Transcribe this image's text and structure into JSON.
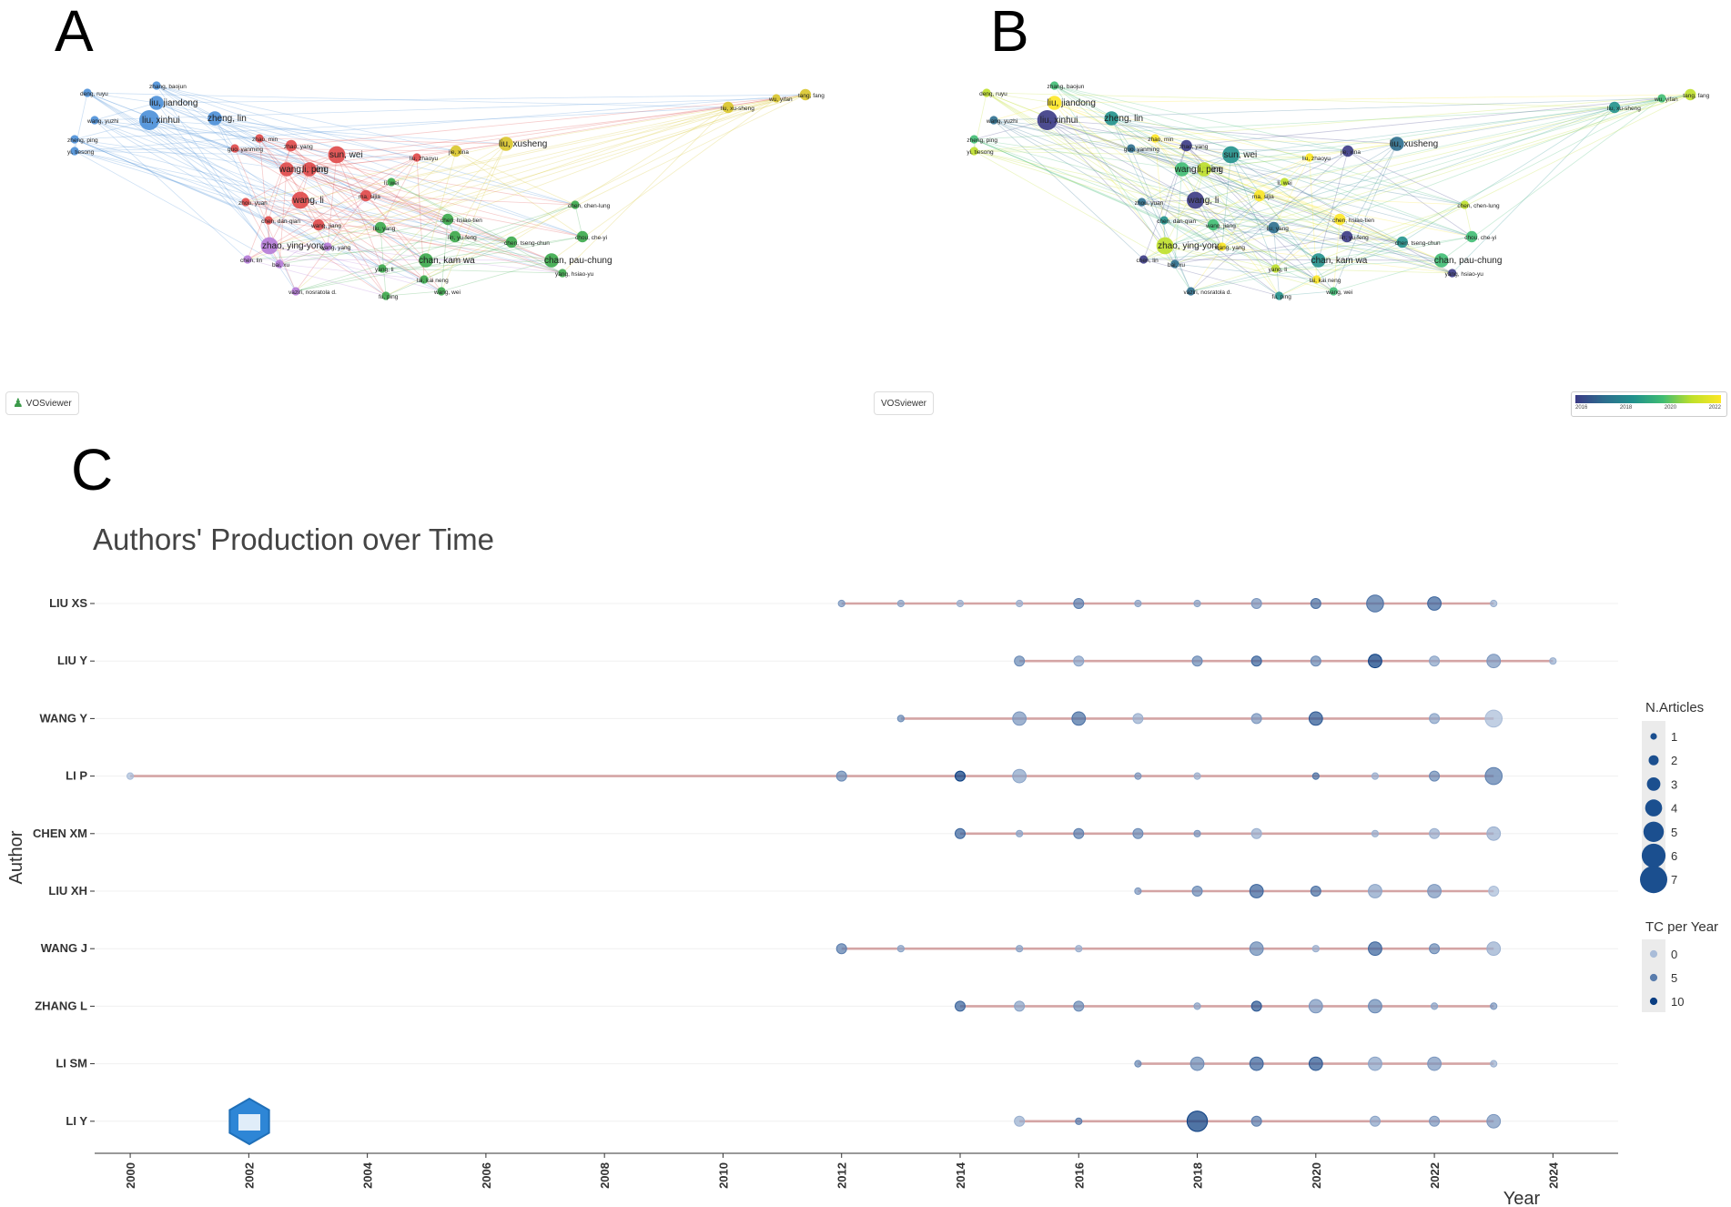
{
  "panels": {
    "a": "A",
    "b": "B",
    "c": "C"
  },
  "vosviewer": {
    "a_label": "VOSviewer",
    "b_label": "VOSviewer"
  },
  "colorbar": {
    "ticks": [
      "2016",
      "2018",
      "2020",
      "2022"
    ]
  },
  "network_labels": [
    "zhang, baojun",
    "deng, ruyu",
    "liu, jiandong",
    "liu, xinhui",
    "wang, yuzhi",
    "zheng, lin",
    "zheng, ping",
    "yi, tiesong",
    "zhao, min",
    "zhao, yang",
    "guo, yanming",
    "sun, wei",
    "wang, chen",
    "li, ping",
    "liu, zhaoyu",
    "jie, xina",
    "liu, xusheng",
    "liu, xu-sheng",
    "wu, yifan",
    "tang, fang",
    "ma, sijia",
    "wang, li",
    "zhou, yuan",
    "chen, dan-qian",
    "wang, jiang",
    "chen, chen-lung",
    "chen, hsiao-tien",
    "lin, yu-feng",
    "liu, yang",
    "chen, tseng-chun",
    "chou, che-yi",
    "zhao, ying-yong",
    "wang, yang",
    "chen, lin",
    "bai, xu",
    "chan, kam wa",
    "chan, pau-chung",
    "yang, li",
    "lai, kai neng",
    "yang, hsiao-yu",
    "vaziri, nosratola d.",
    "fu, ping",
    "wang, wei",
    "li, wei"
  ],
  "chart_data": {
    "type": "scatter",
    "title": "Authors' Production over Time",
    "xlabel": "Year",
    "ylabel": "Author",
    "xlim": [
      1999.4,
      2025.1
    ],
    "xticks": [
      2000,
      2002,
      2004,
      2006,
      2008,
      2010,
      2012,
      2014,
      2016,
      2018,
      2020,
      2022,
      2024
    ],
    "authors": [
      {
        "name": "LIU XS",
        "points": [
          [
            2012,
            1,
            3
          ],
          [
            2013,
            1,
            2
          ],
          [
            2014,
            1,
            1
          ],
          [
            2015,
            1,
            1
          ],
          [
            2016,
            2,
            5
          ],
          [
            2017,
            1,
            2
          ],
          [
            2018,
            1,
            2
          ],
          [
            2019,
            2,
            3
          ],
          [
            2020,
            2,
            6
          ],
          [
            2021,
            4,
            6
          ],
          [
            2022,
            3,
            7
          ],
          [
            2023,
            1,
            1
          ]
        ]
      },
      {
        "name": "LIU Y",
        "points": [
          [
            2015,
            2,
            4
          ],
          [
            2016,
            2,
            2
          ],
          [
            2018,
            2,
            4
          ],
          [
            2019,
            2,
            7
          ],
          [
            2020,
            2,
            4
          ],
          [
            2021,
            3,
            10
          ],
          [
            2022,
            2,
            2
          ],
          [
            2023,
            3,
            3
          ],
          [
            2024,
            1,
            1
          ]
        ]
      },
      {
        "name": "WANG Y",
        "points": [
          [
            2013,
            1,
            4
          ],
          [
            2015,
            3,
            3
          ],
          [
            2016,
            3,
            6
          ],
          [
            2017,
            2,
            1
          ],
          [
            2019,
            2,
            3
          ],
          [
            2020,
            3,
            8
          ],
          [
            2022,
            2,
            2
          ],
          [
            2023,
            4,
            0
          ]
        ]
      },
      {
        "name": "LI P",
        "points": [
          [
            2000,
            1,
            0
          ],
          [
            2012,
            2,
            4
          ],
          [
            2014,
            2,
            10
          ],
          [
            2015,
            3,
            2
          ],
          [
            2017,
            1,
            3
          ],
          [
            2018,
            1,
            1
          ],
          [
            2020,
            1,
            6
          ],
          [
            2021,
            1,
            1
          ],
          [
            2022,
            2,
            4
          ],
          [
            2023,
            4,
            5
          ]
        ]
      },
      {
        "name": "CHEN XM",
        "points": [
          [
            2014,
            2,
            7
          ],
          [
            2015,
            1,
            2
          ],
          [
            2016,
            2,
            5
          ],
          [
            2017,
            2,
            4
          ],
          [
            2018,
            1,
            3
          ],
          [
            2019,
            2,
            1
          ],
          [
            2021,
            1,
            1
          ],
          [
            2022,
            2,
            1
          ],
          [
            2023,
            3,
            1
          ]
        ]
      },
      {
        "name": "LIU XH",
        "points": [
          [
            2017,
            1,
            3
          ],
          [
            2018,
            2,
            4
          ],
          [
            2019,
            3,
            7
          ],
          [
            2020,
            2,
            6
          ],
          [
            2021,
            3,
            2
          ],
          [
            2022,
            3,
            3
          ],
          [
            2023,
            2,
            0
          ]
        ]
      },
      {
        "name": "WANG J",
        "points": [
          [
            2012,
            2,
            5
          ],
          [
            2013,
            1,
            2
          ],
          [
            2015,
            1,
            2
          ],
          [
            2016,
            1,
            1
          ],
          [
            2019,
            3,
            4
          ],
          [
            2020,
            1,
            1
          ],
          [
            2021,
            3,
            7
          ],
          [
            2022,
            2,
            4
          ],
          [
            2023,
            3,
            1
          ]
        ]
      },
      {
        "name": "ZHANG L",
        "points": [
          [
            2014,
            2,
            7
          ],
          [
            2015,
            2,
            2
          ],
          [
            2016,
            2,
            4
          ],
          [
            2018,
            1,
            2
          ],
          [
            2019,
            2,
            8
          ],
          [
            2020,
            3,
            3
          ],
          [
            2021,
            3,
            4
          ],
          [
            2022,
            1,
            2
          ],
          [
            2023,
            1,
            3
          ]
        ]
      },
      {
        "name": "LI SM",
        "points": [
          [
            2017,
            1,
            4
          ],
          [
            2018,
            3,
            4
          ],
          [
            2019,
            3,
            7
          ],
          [
            2020,
            3,
            8
          ],
          [
            2021,
            3,
            2
          ],
          [
            2022,
            3,
            3
          ],
          [
            2023,
            1,
            1
          ]
        ]
      },
      {
        "name": "LI Y",
        "points": [
          [
            2015,
            2,
            1
          ],
          [
            2016,
            1,
            5
          ],
          [
            2018,
            5,
            12
          ],
          [
            2019,
            2,
            5
          ],
          [
            2021,
            2,
            2
          ],
          [
            2022,
            2,
            3
          ],
          [
            2023,
            3,
            3
          ]
        ]
      }
    ],
    "legend": {
      "size_title": "N.Articles",
      "size_values": [
        1,
        2,
        3,
        4,
        5,
        6,
        7
      ],
      "color_title": "TC per Year",
      "color_values": [
        0,
        5,
        10
      ]
    },
    "colors": {
      "line": "#d4a4a4",
      "point_low": "#a9bcd8",
      "point_high": "#0b3e82",
      "grid": "#f0f0f0"
    }
  }
}
